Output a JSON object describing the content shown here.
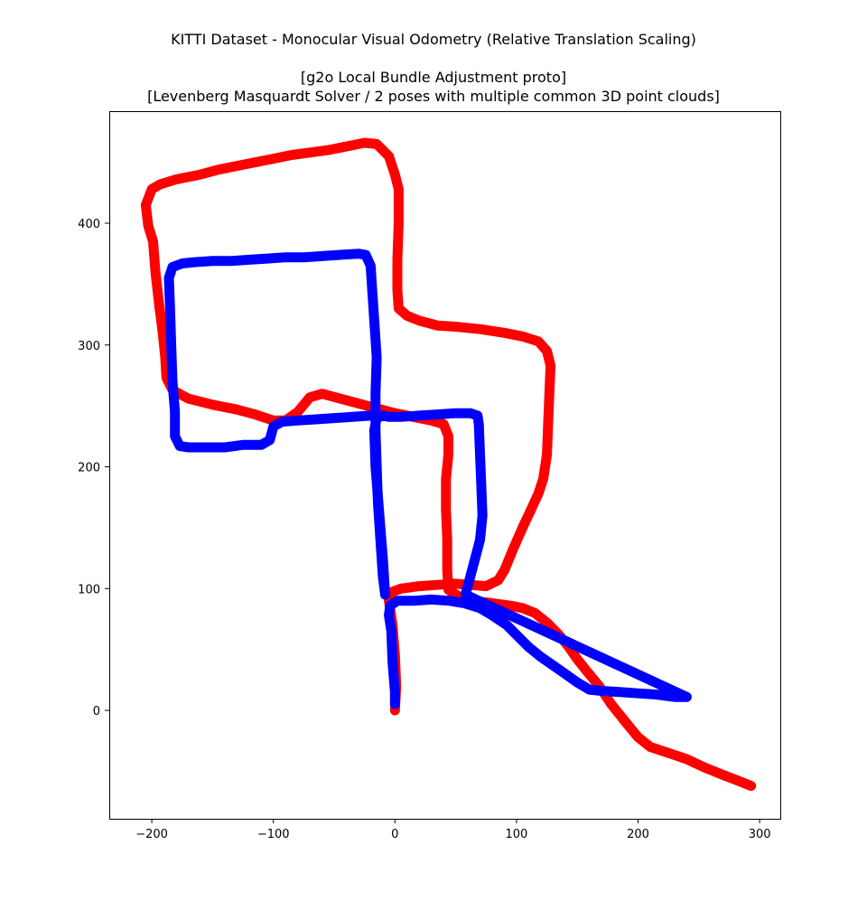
{
  "chart_data": {
    "type": "line",
    "title_lines": [
      "KITTI Dataset - Monocular Visual Odometry (Relative Translation Scaling)",
      "[g2o Local Bundle Adjustment proto]",
      "[Levenberg Masquardt Solver / 2 poses with multiple common 3D point clouds]"
    ],
    "xlabel": "",
    "ylabel": "",
    "xlim": [
      -235,
      317
    ],
    "ylim": [
      -89,
      492
    ],
    "xticks": [
      -200,
      -100,
      0,
      100,
      200,
      300
    ],
    "xtick_labels": [
      "−200",
      "−100",
      "0",
      "100",
      "200",
      "300"
    ],
    "yticks": [
      0,
      100,
      200,
      300,
      400
    ],
    "ytick_labels": [
      "0",
      "100",
      "200",
      "300",
      "400"
    ],
    "grid": false,
    "legend": "none",
    "series": [
      {
        "color": "#ff0000",
        "points": [
          [
            0,
            0
          ],
          [
            1,
            20
          ],
          [
            0,
            45
          ],
          [
            -2,
            70
          ],
          [
            -5,
            90
          ],
          [
            -3,
            97
          ],
          [
            5,
            100
          ],
          [
            20,
            102
          ],
          [
            35,
            103
          ],
          [
            50,
            104
          ],
          [
            62,
            103
          ],
          [
            75,
            102
          ],
          [
            85,
            107
          ],
          [
            90,
            115
          ],
          [
            97,
            132
          ],
          [
            105,
            150
          ],
          [
            112,
            165
          ],
          [
            118,
            178
          ],
          [
            122,
            190
          ],
          [
            125,
            210
          ],
          [
            126,
            235
          ],
          [
            127,
            260
          ],
          [
            128,
            283
          ],
          [
            125,
            295
          ],
          [
            118,
            303
          ],
          [
            105,
            307
          ],
          [
            90,
            310
          ],
          [
            70,
            313
          ],
          [
            50,
            315
          ],
          [
            35,
            316
          ],
          [
            20,
            320
          ],
          [
            10,
            324
          ],
          [
            3,
            330
          ],
          [
            2,
            345
          ],
          [
            2,
            370
          ],
          [
            3,
            400
          ],
          [
            3,
            428
          ],
          [
            0,
            440
          ],
          [
            -5,
            455
          ],
          [
            -15,
            465
          ],
          [
            -25,
            466
          ],
          [
            -40,
            463
          ],
          [
            -55,
            460
          ],
          [
            -70,
            458
          ],
          [
            -85,
            456
          ],
          [
            -100,
            453
          ],
          [
            -115,
            450
          ],
          [
            -130,
            447
          ],
          [
            -145,
            444
          ],
          [
            -160,
            440
          ],
          [
            -180,
            436
          ],
          [
            -193,
            432
          ],
          [
            -200,
            428
          ],
          [
            -205,
            415
          ],
          [
            -203,
            398
          ],
          [
            -199,
            385
          ],
          [
            -197,
            360
          ],
          [
            -194,
            333
          ],
          [
            -191,
            310
          ],
          [
            -189,
            290
          ],
          [
            -188,
            273
          ],
          [
            -183,
            263
          ],
          [
            -170,
            256
          ],
          [
            -150,
            251
          ],
          [
            -130,
            247
          ],
          [
            -115,
            243
          ],
          [
            -100,
            238
          ],
          [
            -90,
            238
          ],
          [
            -80,
            245
          ],
          [
            -70,
            257
          ],
          [
            -60,
            260
          ],
          [
            -45,
            256
          ],
          [
            -30,
            252
          ],
          [
            -15,
            248
          ],
          [
            0,
            244
          ],
          [
            15,
            241
          ],
          [
            30,
            238
          ],
          [
            40,
            235
          ],
          [
            44,
            225
          ],
          [
            44,
            210
          ],
          [
            42,
            190
          ],
          [
            42,
            165
          ],
          [
            43,
            140
          ],
          [
            43,
            115
          ],
          [
            44,
            99
          ],
          [
            52,
            94
          ],
          [
            65,
            90
          ],
          [
            80,
            88
          ],
          [
            95,
            86
          ],
          [
            105,
            84
          ],
          [
            115,
            80
          ],
          [
            125,
            72
          ],
          [
            135,
            62
          ],
          [
            143,
            52
          ],
          [
            150,
            42
          ],
          [
            158,
            32
          ],
          [
            168,
            20
          ],
          [
            178,
            5
          ],
          [
            190,
            -10
          ],
          [
            200,
            -22
          ],
          [
            210,
            -30
          ],
          [
            225,
            -35
          ],
          [
            240,
            -40
          ],
          [
            255,
            -47
          ],
          [
            270,
            -53
          ],
          [
            283,
            -58
          ],
          [
            293,
            -62
          ]
        ]
      },
      {
        "color": "#0000ff",
        "points": [
          [
            0,
            5
          ],
          [
            0,
            15
          ],
          [
            -2,
            40
          ],
          [
            -3,
            65
          ],
          [
            -5,
            78
          ],
          [
            -4,
            86
          ],
          [
            2,
            90
          ],
          [
            15,
            90
          ],
          [
            30,
            91
          ],
          [
            45,
            90
          ],
          [
            57,
            88
          ],
          [
            70,
            84
          ],
          [
            80,
            78
          ],
          [
            92,
            70
          ],
          [
            100,
            62
          ],
          [
            110,
            52
          ],
          [
            120,
            44
          ],
          [
            130,
            37
          ],
          [
            140,
            30
          ],
          [
            150,
            23
          ],
          [
            160,
            17
          ],
          [
            170,
            16
          ],
          [
            185,
            15
          ],
          [
            200,
            14
          ],
          [
            215,
            13
          ],
          [
            230,
            11
          ],
          [
            240,
            11
          ],
          [
            58,
            95
          ],
          [
            62,
            110
          ],
          [
            66,
            125
          ],
          [
            70,
            140
          ],
          [
            72,
            160
          ],
          [
            71,
            185
          ],
          [
            70,
            210
          ],
          [
            69,
            235
          ],
          [
            68,
            242
          ],
          [
            62,
            244
          ],
          [
            50,
            244
          ],
          [
            35,
            243
          ],
          [
            20,
            242
          ],
          [
            5,
            241
          ],
          [
            -5,
            241
          ],
          [
            -10,
            242
          ],
          [
            -15,
            240
          ],
          [
            -17,
            230
          ],
          [
            -16,
            200
          ],
          [
            -14,
            175
          ],
          [
            -12,
            150
          ],
          [
            -10,
            125
          ],
          [
            -9,
            110
          ],
          [
            -8,
            95
          ]
        ],
        "branch_b": [
          [
            -8,
            95
          ],
          [
            -10,
            110
          ],
          [
            -12,
            140
          ],
          [
            -14,
            170
          ],
          [
            -15,
            200
          ],
          [
            -16,
            230
          ],
          [
            -16,
            260
          ],
          [
            -15,
            290
          ],
          [
            -17,
            320
          ],
          [
            -19,
            350
          ],
          [
            -20,
            365
          ],
          [
            -24,
            374
          ],
          [
            -30,
            375
          ],
          [
            -45,
            374
          ],
          [
            -60,
            373
          ],
          [
            -75,
            372
          ],
          [
            -90,
            372
          ],
          [
            -105,
            371
          ],
          [
            -120,
            370
          ],
          [
            -135,
            369
          ],
          [
            -150,
            369
          ],
          [
            -165,
            368
          ],
          [
            -175,
            367
          ],
          [
            -183,
            364
          ],
          [
            -186,
            355
          ],
          [
            -185,
            330
          ],
          [
            -184,
            300
          ],
          [
            -183,
            270
          ],
          [
            -181,
            245
          ],
          [
            -181,
            225
          ],
          [
            -177,
            217
          ],
          [
            -170,
            216
          ],
          [
            -155,
            216
          ],
          [
            -140,
            216
          ],
          [
            -125,
            218
          ],
          [
            -110,
            218
          ],
          [
            -103,
            222
          ],
          [
            -100,
            233
          ],
          [
            -93,
            237
          ],
          [
            -80,
            238
          ],
          [
            -65,
            239
          ],
          [
            -50,
            240
          ],
          [
            -35,
            241
          ],
          [
            -20,
            242
          ],
          [
            -10,
            242
          ]
        ]
      }
    ]
  }
}
